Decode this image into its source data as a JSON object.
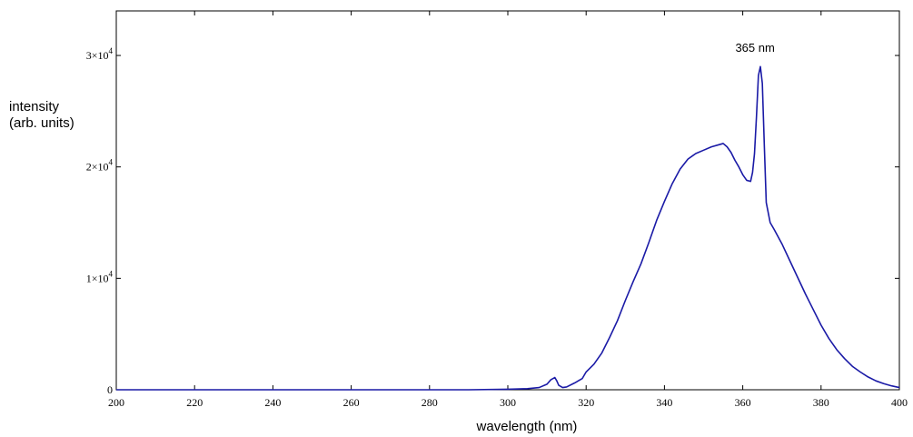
{
  "chart_data": {
    "type": "line",
    "xlabel": "wavelength (nm)",
    "ylabel_lines": [
      "intensity",
      "(arb. units)"
    ],
    "xlim": [
      200,
      400
    ],
    "ylim": [
      0,
      34000
    ],
    "x_ticks": [
      200,
      220,
      240,
      260,
      280,
      300,
      320,
      340,
      360,
      380,
      400
    ],
    "x_tick_labels": [
      "200",
      "220",
      "240",
      "260",
      "280",
      "300",
      "320",
      "340",
      "360",
      "380",
      "400"
    ],
    "y_ticks": [
      0,
      10000,
      20000,
      30000
    ],
    "y_tick_labels": [
      {
        "base": "0",
        "exp": ""
      },
      {
        "base": "1×10",
        "exp": "4"
      },
      {
        "base": "2×10",
        "exp": "4"
      },
      {
        "base": "3×10",
        "exp": "4"
      }
    ],
    "grid": false,
    "annotations": [
      {
        "text": "365 nm",
        "x": 365,
        "y": 30500
      }
    ],
    "series": [
      {
        "color": "#1a1aa6",
        "x": [
          200,
          250,
          290,
          300,
          305,
          308,
          310,
          311,
          312,
          312.5,
          313,
          314,
          315,
          317,
          319,
          320,
          322,
          324,
          326,
          328,
          330,
          332,
          334,
          336,
          338,
          340,
          342,
          344,
          346,
          348,
          350,
          352,
          354,
          355,
          356,
          357,
          358,
          359,
          360,
          361,
          362,
          362.5,
          363,
          363.5,
          364,
          364.5,
          365,
          365.5,
          366,
          367,
          368,
          370,
          372,
          374,
          376,
          378,
          380,
          382,
          384,
          386,
          388,
          390,
          392,
          394,
          396,
          398,
          400
        ],
        "y": [
          0,
          0,
          0,
          50,
          100,
          200,
          500,
          900,
          1100,
          800,
          400,
          200,
          250,
          600,
          1000,
          1600,
          2300,
          3300,
          4700,
          6200,
          8000,
          9700,
          11300,
          13200,
          15200,
          16900,
          18500,
          19800,
          20700,
          21200,
          21500,
          21800,
          22000,
          22100,
          21800,
          21300,
          20600,
          20000,
          19300,
          18800,
          18700,
          19500,
          21200,
          24500,
          28200,
          29000,
          27500,
          22000,
          16800,
          15000,
          14400,
          13100,
          11600,
          10100,
          8600,
          7200,
          5800,
          4600,
          3600,
          2800,
          2100,
          1600,
          1150,
          800,
          550,
          350,
          200
        ]
      }
    ]
  }
}
